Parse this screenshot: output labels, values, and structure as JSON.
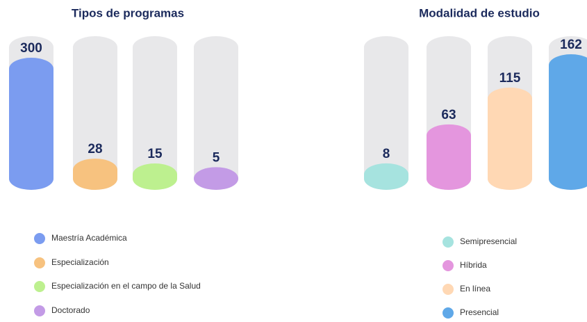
{
  "chart_data": [
    {
      "type": "bar",
      "title": "Tipos de programas",
      "categories": [
        "Maestría Académica",
        "Especialización",
        "Especialización en el campo de la Salud",
        "Doctorado"
      ],
      "values": [
        300,
        28,
        15,
        5
      ],
      "colors": [
        "#7b9cf0",
        "#f7c27f",
        "#bdf08f",
        "#c39be6"
      ]
    },
    {
      "type": "bar",
      "title": "Modalidad de estudio",
      "categories": [
        "Semipresencial",
        "Híbrida",
        "En línea",
        "Presencial"
      ],
      "values": [
        8,
        63,
        115,
        162
      ],
      "colors": [
        "#a6e3df",
        "#e496de",
        "#ffd8b4",
        "#5fa8e8"
      ]
    }
  ]
}
